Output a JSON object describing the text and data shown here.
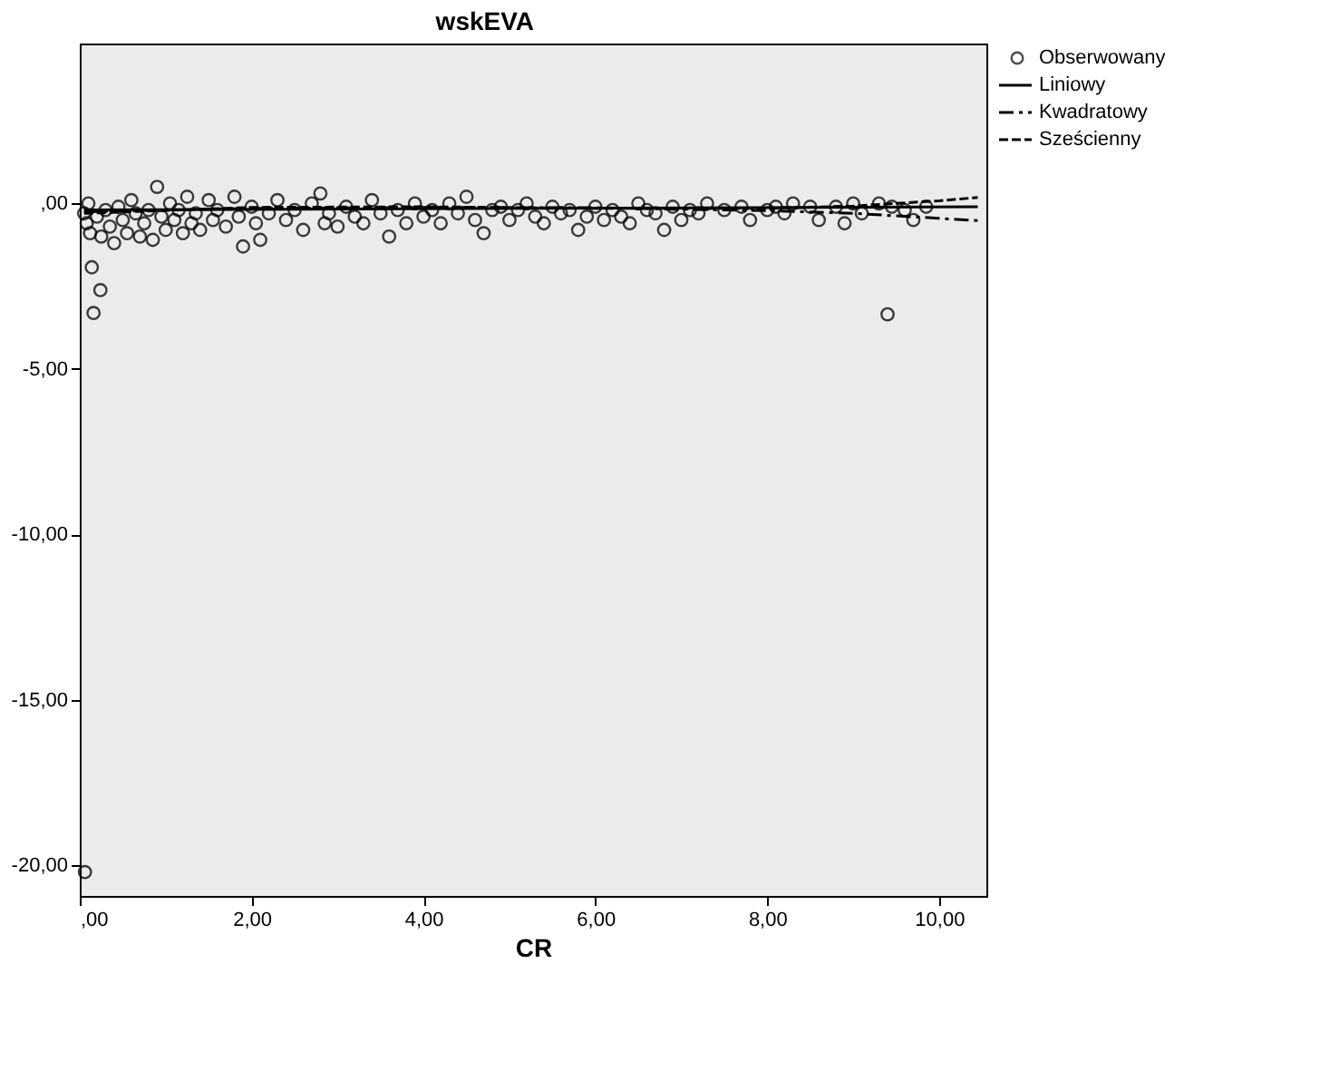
{
  "chart_data": {
    "type": "scatter",
    "title": "wskEVA",
    "xlabel": "CR",
    "xlim": [
      0,
      10.55
    ],
    "ylim": [
      -20.92,
      4.83
    ],
    "xticks": [
      {
        "value": 0,
        "label": ",00"
      },
      {
        "value": 2,
        "label": "2,00"
      },
      {
        "value": 4,
        "label": "4,00"
      },
      {
        "value": 6,
        "label": "6,00"
      },
      {
        "value": 8,
        "label": "8,00"
      },
      {
        "value": 10,
        "label": "10,00"
      }
    ],
    "yticks": [
      {
        "value": 0,
        "label": ",00"
      },
      {
        "value": -5,
        "label": "-5,00"
      },
      {
        "value": -10,
        "label": "-10,00"
      },
      {
        "value": -15,
        "label": "-15,00"
      },
      {
        "value": -20,
        "label": "-20,00"
      }
    ],
    "grid": false,
    "legend": "top right",
    "series": [
      {
        "name": "Obserwowany",
        "type": "scatter",
        "marker": "circle",
        "color": "#000000",
        "x": [
          0.06,
          0.14,
          0.24,
          0.16,
          0.05,
          0.08,
          0.1,
          0.12,
          0.2,
          0.25,
          0.3,
          0.35,
          0.4,
          0.45,
          0.5,
          0.55,
          0.6,
          0.65,
          0.7,
          0.75,
          0.8,
          0.85,
          0.9,
          0.95,
          1.0,
          1.05,
          1.1,
          1.15,
          1.2,
          1.25,
          1.3,
          1.35,
          1.4,
          1.5,
          1.55,
          1.6,
          1.7,
          1.8,
          1.85,
          1.9,
          2.0,
          2.05,
          2.1,
          2.2,
          2.3,
          2.4,
          2.5,
          2.6,
          2.7,
          2.8,
          2.85,
          2.9,
          3.0,
          3.1,
          3.2,
          3.3,
          3.4,
          3.5,
          3.6,
          3.7,
          3.8,
          3.9,
          4.0,
          4.1,
          4.2,
          4.3,
          4.4,
          4.5,
          4.6,
          4.7,
          4.8,
          4.9,
          5.0,
          5.1,
          5.2,
          5.3,
          5.4,
          5.5,
          5.6,
          5.7,
          5.8,
          5.9,
          6.0,
          6.1,
          6.2,
          6.3,
          6.4,
          6.5,
          6.6,
          6.7,
          6.8,
          6.9,
          7.0,
          7.1,
          7.2,
          7.3,
          7.5,
          7.7,
          7.8,
          8.0,
          8.1,
          8.2,
          8.3,
          8.5,
          8.6,
          8.8,
          8.9,
          9.0,
          9.1,
          9.3,
          9.4,
          9.45,
          9.6,
          9.7,
          9.85
        ],
        "values": [
          -20.2,
          -1.93,
          -2.62,
          -3.31,
          -0.3,
          -0.6,
          0.0,
          -0.9,
          -0.4,
          -1.0,
          -0.2,
          -0.7,
          -1.2,
          -0.1,
          -0.5,
          -0.9,
          0.1,
          -0.3,
          -1.0,
          -0.6,
          -0.2,
          -1.1,
          0.5,
          -0.4,
          -0.8,
          0.0,
          -0.5,
          -0.2,
          -0.9,
          0.2,
          -0.6,
          -0.3,
          -0.8,
          0.1,
          -0.5,
          -0.2,
          -0.7,
          0.2,
          -0.4,
          -1.3,
          -0.1,
          -0.6,
          -1.1,
          -0.3,
          0.1,
          -0.5,
          -0.2,
          -0.8,
          0.0,
          0.3,
          -0.6,
          -0.3,
          -0.7,
          -0.1,
          -0.4,
          -0.6,
          0.1,
          -0.3,
          -1.0,
          -0.2,
          -0.6,
          0.0,
          -0.4,
          -0.2,
          -0.6,
          0.0,
          -0.3,
          0.2,
          -0.5,
          -0.9,
          -0.2,
          -0.1,
          -0.5,
          -0.2,
          0.0,
          -0.4,
          -0.6,
          -0.1,
          -0.3,
          -0.2,
          -0.8,
          -0.4,
          -0.1,
          -0.5,
          -0.2,
          -0.4,
          -0.6,
          0.0,
          -0.2,
          -0.3,
          -0.8,
          -0.1,
          -0.5,
          -0.2,
          -0.3,
          0.0,
          -0.2,
          -0.1,
          -0.5,
          -0.2,
          -0.1,
          -0.3,
          0.0,
          -0.1,
          -0.5,
          -0.1,
          -0.6,
          0.0,
          -0.3,
          0.0,
          -3.35,
          -0.1,
          -0.2,
          -0.5,
          -0.1
        ]
      },
      {
        "name": "Liniowy",
        "type": "line",
        "line_style": "solid",
        "color": "#000000",
        "x": [
          0.05,
          10.45
        ],
        "values": [
          -0.2,
          -0.1
        ]
      },
      {
        "name": "Kwadratowy",
        "type": "line",
        "line_style": "dashed",
        "color": "#000000",
        "x": [
          0.05,
          2,
          4,
          6,
          8,
          9,
          10,
          10.45
        ],
        "values": [
          -0.25,
          -0.15,
          -0.12,
          -0.13,
          -0.22,
          -0.3,
          -0.45,
          -0.52
        ]
      },
      {
        "name": "Sześcienny",
        "type": "line",
        "line_style": "dashed",
        "color": "#000000",
        "x": [
          0.05,
          2,
          4,
          6,
          8,
          9,
          10,
          10.45
        ],
        "values": [
          -0.3,
          -0.12,
          -0.1,
          -0.15,
          -0.15,
          -0.08,
          0.08,
          0.18
        ]
      }
    ]
  }
}
